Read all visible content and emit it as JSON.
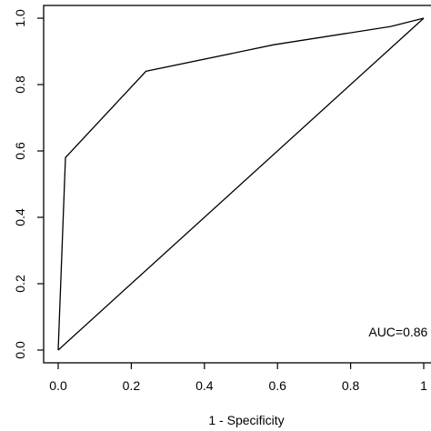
{
  "chart_data": {
    "type": "line",
    "title": "",
    "xlabel": "1 - Specificity",
    "ylabel": "",
    "xlim": [
      0,
      1
    ],
    "ylim": [
      0,
      1
    ],
    "grid": false,
    "x_ticks": [
      0.0,
      0.2,
      0.4,
      0.6,
      0.8,
      1.0
    ],
    "x_tick_labels": [
      "0.0",
      "0.2",
      "0.4",
      "0.6",
      "0.8",
      "1"
    ],
    "y_ticks": [
      0.0,
      0.2,
      0.4,
      0.6,
      0.8,
      1.0
    ],
    "y_tick_labels": [
      "0.0",
      "0.2",
      "0.4",
      "0.6",
      "0.8",
      "1.0"
    ],
    "series": [
      {
        "x": [
          0.0,
          0.02,
          0.24,
          0.59,
          0.91,
          1.0
        ],
        "y": [
          0.0,
          0.58,
          0.84,
          0.92,
          0.975,
          1.0
        ]
      },
      {
        "x": [
          0.0,
          1.0
        ],
        "y": [
          0.0,
          1.0
        ]
      }
    ],
    "annotations": [
      {
        "text": "AUC=0.86",
        "x": 0.93,
        "y": 0.055
      }
    ]
  }
}
